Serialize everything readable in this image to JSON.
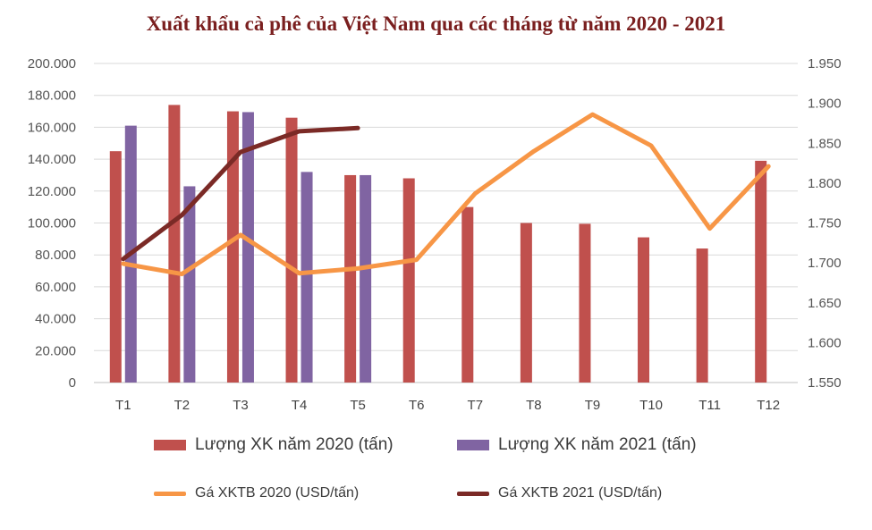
{
  "chart_data": {
    "type": "bar",
    "title": "Xuất khẩu cà phê của Việt Nam qua các tháng từ năm 2020 - 2021",
    "categories": [
      "T1",
      "T2",
      "T3",
      "T4",
      "T5",
      "T6",
      "T7",
      "T8",
      "T9",
      "T10",
      "T11",
      "T12"
    ],
    "left_axis": {
      "ylim": [
        0,
        200000
      ],
      "ticks": [
        "0",
        "20.000",
        "40.000",
        "60.000",
        "80.000",
        "100.000",
        "120.000",
        "140.000",
        "160.000",
        "180.000",
        "200.000"
      ]
    },
    "right_axis": {
      "ylim": [
        1550,
        1950
      ],
      "ticks": [
        "1.550",
        "1.600",
        "1.650",
        "1.700",
        "1.750",
        "1.800",
        "1.850",
        "1.900",
        "1.950"
      ]
    },
    "grid": true,
    "legend_position": "bottom",
    "series": [
      {
        "name": "Lượng XK năm 2020 (tấn)",
        "type": "bar",
        "axis": "left",
        "color": "#c0504d",
        "values": [
          145000,
          174000,
          170000,
          166000,
          130000,
          128000,
          110000,
          100000,
          99500,
          91000,
          84000,
          139000
        ]
      },
      {
        "name": "Lượng XK năm 2021 (tấn)",
        "type": "bar",
        "axis": "left",
        "color": "#8064a2",
        "values": [
          161000,
          123000,
          169500,
          132000,
          130000,
          null,
          null,
          null,
          null,
          null,
          null,
          null
        ]
      },
      {
        "name": "Gá XKTB 2020 (USD/tấn)",
        "type": "line",
        "axis": "right",
        "color": "#f79646",
        "values": [
          1699,
          1686,
          1735,
          1687,
          1693,
          1704,
          1787,
          1840,
          1886,
          1847,
          1743,
          1821
        ]
      },
      {
        "name": "Gá XKTB 2021 (USD/tấn)",
        "type": "line",
        "axis": "right",
        "color": "#7b2a26",
        "values": [
          1705,
          1760,
          1839,
          1865,
          1869,
          null,
          null,
          null,
          null,
          null,
          null,
          null
        ]
      }
    ]
  }
}
